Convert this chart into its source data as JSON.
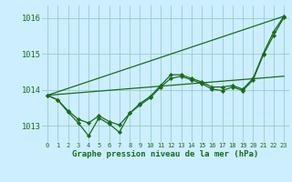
{
  "bg_color": "#cceeff",
  "grid_color": "#99cccc",
  "line_color": "#1a6b1a",
  "marker_color": "#1a6b1a",
  "xlabel": "Graphe pression niveau de la mer (hPa)",
  "xlim": [
    -0.5,
    23.5
  ],
  "ylim": [
    1012.55,
    1016.35
  ],
  "yticks": [
    1013,
    1014,
    1015,
    1016
  ],
  "xticks": [
    0,
    1,
    2,
    3,
    4,
    5,
    6,
    7,
    8,
    9,
    10,
    11,
    12,
    13,
    14,
    15,
    16,
    17,
    18,
    19,
    20,
    21,
    22,
    23
  ],
  "series1_x": [
    0,
    1,
    2,
    3,
    4,
    5,
    6,
    7,
    8,
    9,
    10,
    11,
    12,
    13,
    14,
    15,
    16,
    17,
    18,
    19,
    20,
    21,
    22,
    23
  ],
  "series1_y": [
    1013.85,
    1013.72,
    1013.38,
    1013.08,
    1012.72,
    1013.22,
    1013.05,
    1012.82,
    1013.35,
    1013.62,
    1013.82,
    1014.12,
    1014.42,
    1014.42,
    1014.32,
    1014.22,
    1014.08,
    1014.08,
    1014.12,
    1014.02,
    1014.32,
    1015.02,
    1015.62,
    1016.05
  ],
  "series2_x": [
    0,
    1,
    2,
    3,
    4,
    5,
    6,
    7,
    8,
    9,
    10,
    11,
    12,
    13,
    14,
    15,
    16,
    17,
    18,
    19,
    20,
    21,
    22,
    23
  ],
  "series2_y": [
    1013.85,
    1013.72,
    1013.42,
    1013.18,
    1013.08,
    1013.28,
    1013.12,
    1013.02,
    1013.35,
    1013.58,
    1013.78,
    1014.08,
    1014.32,
    1014.38,
    1014.28,
    1014.18,
    1014.02,
    1013.98,
    1014.08,
    1013.98,
    1014.28,
    1014.98,
    1015.52,
    1016.02
  ],
  "trend1_x": [
    0,
    23
  ],
  "trend1_y": [
    1013.85,
    1014.38
  ],
  "trend2_x": [
    0,
    23
  ],
  "trend2_y": [
    1013.85,
    1016.05
  ]
}
